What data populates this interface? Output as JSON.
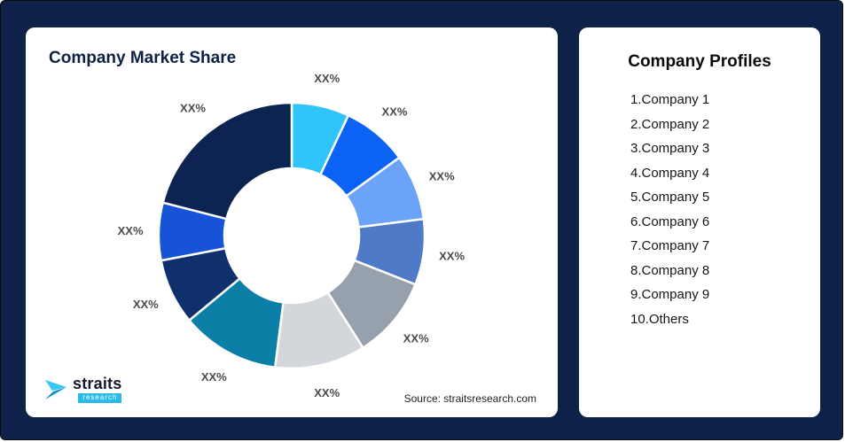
{
  "page": {
    "background_color": "#0e2149"
  },
  "chart_card": {
    "title": "Company Market Share",
    "source": "Source: straitsresearch.com"
  },
  "logo": {
    "name": "straits",
    "sub": "research",
    "accent_color": "#2bb9e8"
  },
  "profiles_card": {
    "title": "Company Profiles",
    "items": [
      "1.Company 1",
      "2.Company 2",
      "3.Company 3",
      "4.Company 4",
      "5.Company 5",
      "6.Company 6",
      "7.Company 7",
      "8.Company 8",
      "9.Company 9",
      "10.Others"
    ]
  },
  "chart_data": {
    "type": "pie",
    "donut": true,
    "title": "Company Market Share",
    "start_angle_deg": 0,
    "direction": "clockwise",
    "note": "All slice data labels are masked as XX% in the source image; values below are estimated angular proportions (percent of whole) read from the chart.",
    "legend_position": "none",
    "segments": [
      {
        "company": "Company 1",
        "label": "XX%",
        "value": 7,
        "color": "#2fc5fb"
      },
      {
        "company": "Company 2",
        "label": "XX%",
        "value": 8,
        "color": "#0b63f6"
      },
      {
        "company": "Company 3",
        "label": "XX%",
        "value": 8,
        "color": "#6ba3f9"
      },
      {
        "company": "Company 4",
        "label": "XX%",
        "value": 8,
        "color": "#4f7ac7"
      },
      {
        "company": "Company 5",
        "label": "XX%",
        "value": 10,
        "color": "#97a1ae"
      },
      {
        "company": "Company 6",
        "label": "XX%",
        "value": 11,
        "color": "#d3d7dc"
      },
      {
        "company": "Company 7",
        "label": "XX%",
        "value": 12,
        "color": "#0c7fa6"
      },
      {
        "company": "Company 8",
        "label": "XX%",
        "value": 8,
        "color": "#10306c"
      },
      {
        "company": "Company 9",
        "label": "XX%",
        "value": 7,
        "color": "#1653d6"
      },
      {
        "company": "Others",
        "label": "XX%",
        "value": 21,
        "color": "#0d2452"
      }
    ]
  }
}
